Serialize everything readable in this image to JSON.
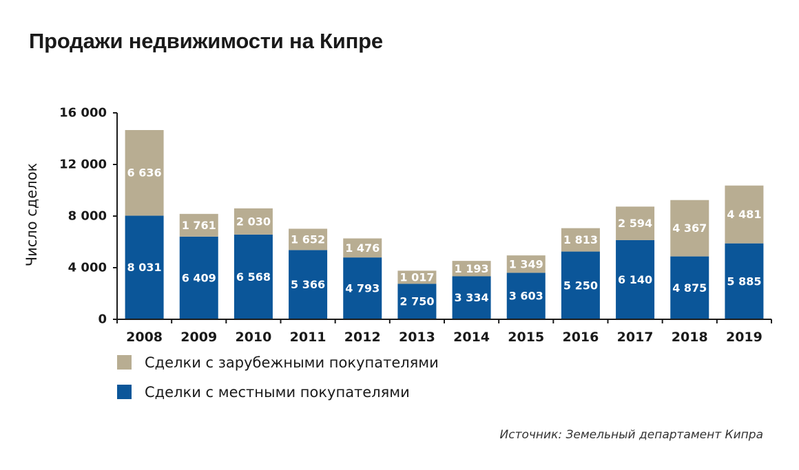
{
  "title": "Продажи недвижимости на Кипре",
  "source": "Источник: Земельный департамент Кипра",
  "colors": {
    "local": "#0b5699",
    "foreign": "#b8ad92",
    "axis": "#1a1a1a",
    "label": "#ffffff"
  },
  "chart_data": {
    "type": "bar",
    "stacked": true,
    "title": "Продажи недвижимости на Кипре",
    "xlabel": "",
    "ylabel": "Число сделок",
    "ylim": [
      0,
      16000
    ],
    "yticks": [
      0,
      4000,
      8000,
      12000,
      16000
    ],
    "ytick_labels": [
      "0",
      "4 000",
      "8 000",
      "12 000",
      "16 000"
    ],
    "grid": false,
    "legend_position": "bottom-left",
    "categories": [
      "2008",
      "2009",
      "2010",
      "2011",
      "2012",
      "2013",
      "2014",
      "2015",
      "2016",
      "2017",
      "2018",
      "2019"
    ],
    "series": [
      {
        "name": "Сделки с местными покупателями",
        "values": [
          8031,
          6409,
          6568,
          5366,
          4793,
          2750,
          3334,
          3603,
          5250,
          6140,
          4875,
          5885
        ],
        "labels": [
          "8 031",
          "6 409",
          "6 568",
          "5 366",
          "4 793",
          "2 750",
          "3 334",
          "3 603",
          "5 250",
          "6 140",
          "4 875",
          "5 885"
        ]
      },
      {
        "name": "Сделки с зарубежными покупателями",
        "values": [
          6636,
          1761,
          2030,
          1652,
          1476,
          1017,
          1193,
          1349,
          1813,
          2594,
          4367,
          4481
        ],
        "labels": [
          "6 636",
          "1 761",
          "2 030",
          "1 652",
          "1 476",
          "1 017",
          "1 193",
          "1 349",
          "1 813",
          "2 594",
          "4 367",
          "4 481"
        ]
      }
    ]
  }
}
